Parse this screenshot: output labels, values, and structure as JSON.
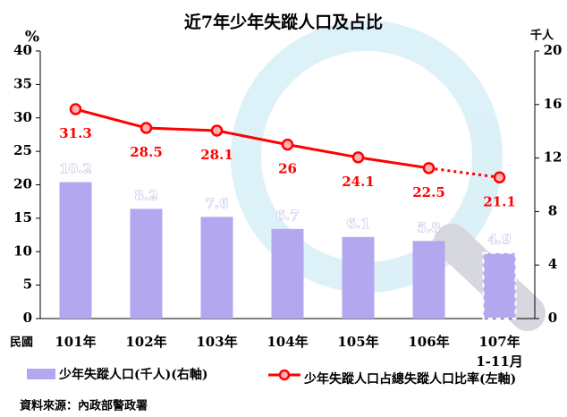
{
  "chart_data": {
    "type": "bar-line",
    "title": "近7年少年失蹤人口及占比",
    "y_label": "%",
    "y2_label": "千人",
    "x_label": "民國",
    "categories": [
      "101年",
      "102年",
      "103年",
      "104年",
      "105年",
      "106年",
      "107年\n1-11月"
    ],
    "series": [
      {
        "name": "少年失蹤人口(千人)(右軸)",
        "type": "bar",
        "axis": "y2",
        "color": "#b3a8f0",
        "label_color": "#ffffff",
        "values": [
          10.2,
          8.2,
          7.6,
          6.7,
          6.1,
          5.8,
          4.9
        ],
        "last_bar_dashed": true
      },
      {
        "name": "少年失蹤人口占總失蹤人口比率(左軸)",
        "type": "line",
        "axis": "y",
        "color": "#ff0000",
        "label_color": "#ff0000",
        "values": [
          31.3,
          28.5,
          28.1,
          26.0,
          24.1,
          22.5,
          21.1
        ],
        "last_segment_dotted": true
      }
    ],
    "ylim": [
      0,
      40
    ],
    "yticks": [
      0,
      5,
      10,
      15,
      20,
      25,
      30,
      35,
      40
    ],
    "y2lim": [
      0,
      20
    ],
    "y2ticks": [
      0,
      4,
      8,
      12,
      16,
      20
    ],
    "grid": false,
    "source": "資料來源：內政部警政署"
  }
}
